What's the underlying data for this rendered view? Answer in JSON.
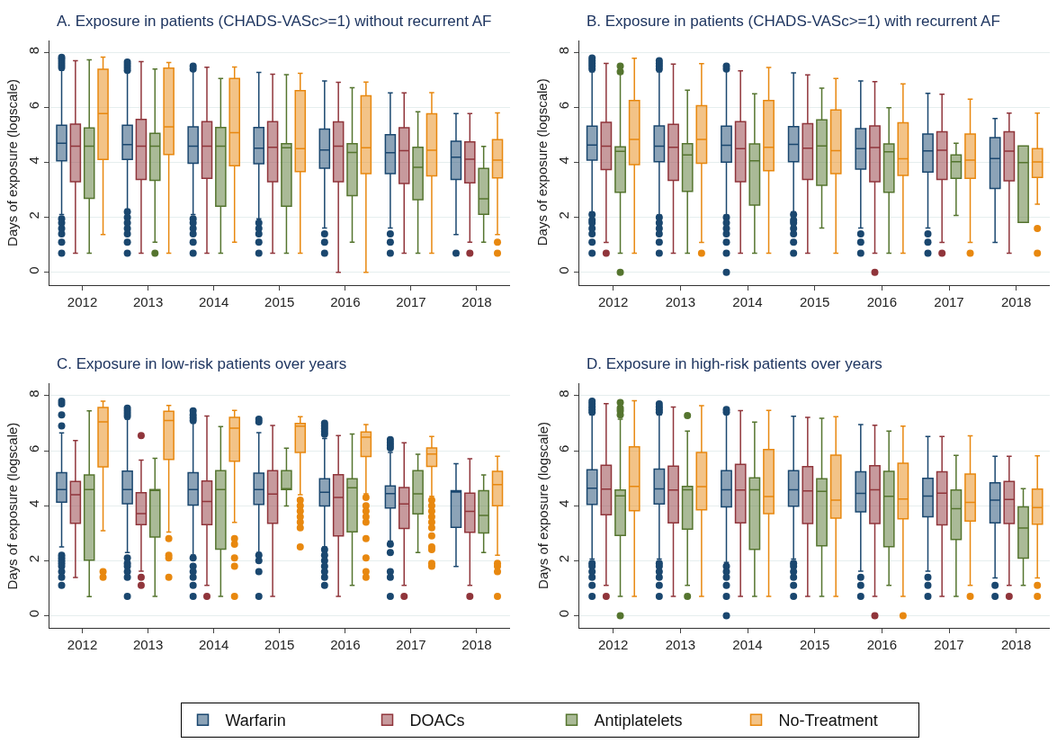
{
  "chart_data": [
    {
      "type": "box",
      "title": "A. Exposure in patients (CHADS-VASc>=1) without recurrent AF",
      "ylabel": "Days of exposure (logscale)",
      "categories": [
        "2012",
        "2013",
        "2014",
        "2015",
        "2016",
        "2017",
        "2018"
      ],
      "ylim": [
        -0.45,
        8.45
      ],
      "yticks": [
        0,
        2,
        4,
        6,
        8
      ],
      "grid": "y",
      "legend": "bottom",
      "marker": "circle",
      "series": [
        {
          "name": "Warfarin",
          "color": "#1a476f",
          "boxes": [
            {
              "low": 2.1,
              "q1": 4.06,
              "median": 4.7,
              "q3": 5.35,
              "high": 7.35,
              "outliers": [
                7.45,
                7.55,
                7.65,
                7.75,
                7.82,
                1.95,
                1.8,
                1.6,
                1.4,
                1.1,
                0.7
              ]
            },
            {
              "low": 2.3,
              "q1": 4.11,
              "median": 4.65,
              "q3": 5.35,
              "high": 7.3,
              "outliers": [
                7.35,
                7.45,
                7.55,
                7.65,
                2.2,
                2.0,
                1.8,
                1.6,
                1.4,
                1.1,
                0.7
              ]
            },
            {
              "low": 2.1,
              "q1": 3.97,
              "median": 4.59,
              "q3": 5.29,
              "high": 7.35,
              "outliers": [
                7.4,
                7.5,
                1.95,
                1.8,
                1.6,
                1.4,
                1.1,
                0.7
              ]
            },
            {
              "low": 1.95,
              "q1": 3.95,
              "median": 4.52,
              "q3": 5.27,
              "high": 7.27,
              "outliers": [
                1.8,
                1.6,
                1.4,
                1.1,
                0.7
              ]
            },
            {
              "low": 1.61,
              "q1": 3.79,
              "median": 4.45,
              "q3": 5.21,
              "high": 6.96,
              "outliers": [
                1.4,
                1.1,
                0.7
              ]
            },
            {
              "low": 1.61,
              "q1": 3.59,
              "median": 4.35,
              "q3": 5.01,
              "high": 6.53,
              "outliers": [
                1.4,
                1.1,
                0.7
              ]
            },
            {
              "low": 1.38,
              "q1": 3.38,
              "median": 4.19,
              "q3": 4.77,
              "high": 5.78,
              "outliers": [
                0.7
              ]
            }
          ]
        },
        {
          "name": "DOACs",
          "color": "#90353b",
          "boxes": [
            {
              "low": 0.7,
              "q1": 3.3,
              "median": 4.59,
              "q3": 5.39,
              "high": 7.7
            },
            {
              "low": 0.7,
              "q1": 3.38,
              "median": 4.59,
              "q3": 5.56,
              "high": 7.67
            },
            {
              "low": 0.7,
              "q1": 3.42,
              "median": 4.59,
              "q3": 5.48,
              "high": 7.46
            },
            {
              "low": 0.7,
              "q1": 3.3,
              "median": 4.55,
              "q3": 5.48,
              "high": 7.21
            },
            {
              "low": 0,
              "q1": 3.3,
              "median": 4.59,
              "q3": 5.47,
              "high": 6.91
            },
            {
              "low": 0.7,
              "q1": 3.23,
              "median": 4.43,
              "q3": 5.26,
              "high": 6.53
            },
            {
              "low": 1.1,
              "q1": 3.26,
              "median": 4.12,
              "q3": 4.75,
              "high": 5.78,
              "outliers": [
                0.7
              ]
            }
          ]
        },
        {
          "name": "Antiplatelets",
          "color": "#55752f",
          "boxes": [
            {
              "low": 0.7,
              "q1": 2.69,
              "median": 4.59,
              "q3": 5.25,
              "high": 7.73
            },
            {
              "low": 1.1,
              "q1": 3.35,
              "median": 4.59,
              "q3": 5.06,
              "high": 7.4,
              "outliers": [
                0.7
              ]
            },
            {
              "low": 0.7,
              "q1": 2.41,
              "median": 4.59,
              "q3": 5.27,
              "high": 7.05
            },
            {
              "low": 0.7,
              "q1": 2.41,
              "median": 4.53,
              "q3": 4.68,
              "high": 7.19
            },
            {
              "low": 1.1,
              "q1": 2.79,
              "median": 4.36,
              "q3": 4.68,
              "high": 6.72
            },
            {
              "low": 0.7,
              "q1": 2.64,
              "median": 3.82,
              "q3": 4.55,
              "high": 5.84
            },
            {
              "low": 1.1,
              "q1": 2.11,
              "median": 2.68,
              "q3": 3.78,
              "high": 4.58
            }
          ]
        },
        {
          "name": "No-Treatment",
          "color": "#e8880f",
          "boxes": [
            {
              "low": 1.38,
              "q1": 4.11,
              "median": 5.78,
              "q3": 7.39,
              "high": 7.83
            },
            {
              "low": 0.7,
              "q1": 4.29,
              "median": 5.29,
              "q3": 7.43,
              "high": 7.63
            },
            {
              "low": 1.1,
              "q1": 3.88,
              "median": 5.08,
              "q3": 7.05,
              "high": 7.47
            },
            {
              "low": 0.7,
              "q1": 3.67,
              "median": 4.5,
              "q3": 6.61,
              "high": 7.24
            },
            {
              "low": 0,
              "q1": 3.59,
              "median": 4.53,
              "q3": 6.42,
              "high": 6.92
            },
            {
              "low": 0.7,
              "q1": 3.51,
              "median": 4.44,
              "q3": 5.77,
              "high": 6.54
            },
            {
              "low": 1.38,
              "q1": 3.44,
              "median": 4.08,
              "q3": 4.83,
              "high": 5.8,
              "outliers": [
                1.1,
                0.7
              ]
            }
          ]
        }
      ]
    },
    {
      "type": "box",
      "title": "B. Exposure in patients (CHADS-VASc>=1) with recurrent AF",
      "ylabel": "Days of exposure (logscale)",
      "categories": [
        "2012",
        "2013",
        "2014",
        "2015",
        "2016",
        "2017",
        "2018"
      ],
      "ylim": [
        -0.45,
        8.45
      ],
      "yticks": [
        0,
        2,
        4,
        6,
        8
      ],
      "grid": "y",
      "legend": "bottom",
      "marker": "circle",
      "series": [
        {
          "name": "Warfarin",
          "color": "#1a476f",
          "boxes": [
            {
              "low": 2.19,
              "q1": 4.08,
              "median": 4.63,
              "q3": 5.32,
              "high": 7.3,
              "outliers": [
                7.4,
                7.5,
                7.6,
                7.7,
                7.8,
                2.1,
                1.9,
                1.8,
                1.6,
                1.4,
                1.1,
                0.7
              ]
            },
            {
              "low": 2.09,
              "q1": 4.03,
              "median": 4.59,
              "q3": 5.33,
              "high": 7.3,
              "outliers": [
                7.4,
                7.5,
                7.6,
                7.7,
                2.0,
                1.8,
                1.6,
                1.4,
                1.1,
                0.7
              ]
            },
            {
              "low": 2.09,
              "q1": 4.01,
              "median": 4.62,
              "q3": 5.32,
              "high": 7.35,
              "outliers": [
                7.4,
                7.5,
                2.0,
                1.8,
                1.6,
                1.4,
                1.1,
                0.7,
                0
              ]
            },
            {
              "low": 2.2,
              "q1": 4.03,
              "median": 4.66,
              "q3": 5.3,
              "high": 7.26,
              "outliers": [
                2.1,
                1.9,
                1.8,
                1.6,
                1.4,
                1.1,
                0.7
              ]
            },
            {
              "low": 1.61,
              "q1": 3.76,
              "median": 4.5,
              "q3": 5.23,
              "high": 6.96,
              "outliers": [
                1.4,
                1.1,
                0.7
              ]
            },
            {
              "low": 1.61,
              "q1": 3.65,
              "median": 4.42,
              "q3": 5.03,
              "high": 6.51,
              "outliers": [
                1.4,
                1.1,
                0.7
              ]
            },
            {
              "low": 1.09,
              "q1": 3.05,
              "median": 4.14,
              "q3": 4.9,
              "high": 5.6
            }
          ]
        },
        {
          "name": "DOACs",
          "color": "#90353b",
          "boxes": [
            {
              "low": 1.09,
              "q1": 3.74,
              "median": 4.59,
              "q3": 5.46,
              "high": 7.6,
              "outliers": [
                0.7
              ]
            },
            {
              "low": 0.7,
              "q1": 3.35,
              "median": 4.55,
              "q3": 5.38,
              "high": 7.58
            },
            {
              "low": 0.7,
              "q1": 3.3,
              "median": 4.5,
              "q3": 5.48,
              "high": 7.33
            },
            {
              "low": 0.7,
              "q1": 3.38,
              "median": 4.52,
              "q3": 5.41,
              "high": 7.18
            },
            {
              "low": 0.7,
              "q1": 3.3,
              "median": 4.54,
              "q3": 5.33,
              "high": 6.94,
              "outliers": [
                0
              ]
            },
            {
              "low": 1.09,
              "q1": 3.38,
              "median": 4.44,
              "q3": 5.11,
              "high": 6.48,
              "outliers": [
                0.7
              ]
            },
            {
              "low": 0.7,
              "q1": 3.33,
              "median": 4.41,
              "q3": 5.11,
              "high": 5.79
            }
          ]
        },
        {
          "name": "Antiplatelets",
          "color": "#55752f",
          "boxes": [
            {
              "low": 0.7,
              "q1": 2.91,
              "median": 4.4,
              "q3": 4.57,
              "high": 7.22,
              "outliers": [
                7.3,
                7.5,
                0
              ]
            },
            {
              "low": 0.7,
              "q1": 2.95,
              "median": 4.27,
              "q3": 4.68,
              "high": 6.63
            },
            {
              "low": 0.7,
              "q1": 2.45,
              "median": 4.06,
              "q3": 4.67,
              "high": 6.5
            },
            {
              "low": 1.61,
              "q1": 3.17,
              "median": 4.6,
              "q3": 5.55,
              "high": 6.7
            },
            {
              "low": 0.7,
              "q1": 2.91,
              "median": 4.39,
              "q3": 4.67,
              "high": 5.99
            },
            {
              "low": 2.07,
              "q1": 3.42,
              "median": 4.03,
              "q3": 4.27,
              "high": 4.7
            },
            {
              "low": 1.82,
              "q1": 1.82,
              "median": 3.99,
              "q3": 4.6,
              "high": 4.6
            }
          ]
        },
        {
          "name": "No-Treatment",
          "color": "#e8880f",
          "boxes": [
            {
              "low": 0.7,
              "q1": 3.92,
              "median": 4.84,
              "q3": 6.25,
              "high": 7.79
            },
            {
              "low": 1.09,
              "q1": 3.97,
              "median": 4.84,
              "q3": 6.06,
              "high": 7.59,
              "outliers": [
                0.7
              ]
            },
            {
              "low": 0.7,
              "q1": 3.7,
              "median": 4.55,
              "q3": 6.25,
              "high": 7.45
            },
            {
              "low": 0.7,
              "q1": 3.59,
              "median": 4.43,
              "q3": 5.91,
              "high": 7.05
            },
            {
              "low": 0.7,
              "q1": 3.53,
              "median": 4.13,
              "q3": 5.44,
              "high": 6.86
            },
            {
              "low": 1.09,
              "q1": 3.42,
              "median": 4.08,
              "q3": 5.03,
              "high": 6.3,
              "outliers": [
                0.7
              ]
            },
            {
              "low": 2.48,
              "q1": 3.45,
              "median": 4.02,
              "q3": 4.5,
              "high": 5.79,
              "outliers": [
                1.6,
                0.7
              ]
            }
          ]
        }
      ]
    },
    {
      "type": "box",
      "title": "C. Exposure in low-risk patients over years",
      "ylabel": "Days of exposure (logscale)",
      "categories": [
        "2012",
        "2013",
        "2014",
        "2015",
        "2016",
        "2017",
        "2018"
      ],
      "ylim": [
        -0.45,
        8.45
      ],
      "yticks": [
        0,
        2,
        4,
        6,
        8
      ],
      "grid": "y",
      "legend": "bottom",
      "marker": "circle",
      "series": [
        {
          "name": "Warfarin",
          "color": "#1a476f",
          "boxes": [
            {
              "low": 2.5,
              "q1": 4.13,
              "median": 4.59,
              "q3": 5.2,
              "high": 6.65,
              "outliers": [
                6.9,
                7.3,
                7.7,
                7.8,
                2.2,
                2.1,
                2.0,
                1.9,
                1.8,
                1.6,
                1.4,
                1.1
              ]
            },
            {
              "low": 2.3,
              "q1": 4.07,
              "median": 4.59,
              "q3": 5.26,
              "high": 7.15,
              "outliers": [
                7.25,
                7.35,
                7.45,
                7.55,
                2.1,
                1.9,
                1.8,
                1.6,
                1.4,
                0.7
              ]
            },
            {
              "low": 2.21,
              "q1": 4.02,
              "median": 4.59,
              "q3": 5.2,
              "high": 7.0,
              "outliers": [
                7.1,
                7.2,
                7.3,
                7.45,
                2.1,
                1.8,
                1.6,
                1.4,
                1.1,
                0.7
              ]
            },
            {
              "low": 2.3,
              "q1": 4.05,
              "median": 4.59,
              "q3": 5.18,
              "high": 6.66,
              "outliers": [
                7.05,
                7.15,
                2.2,
                2.0,
                1.6,
                0.7
              ]
            },
            {
              "low": 2.5,
              "q1": 3.99,
              "median": 4.49,
              "q3": 4.98,
              "high": 6.44,
              "outliers": [
                6.6,
                6.7,
                6.8,
                6.9,
                7.0,
                2.4,
                2.2,
                2.0,
                1.8,
                1.6,
                1.4,
                1.1
              ]
            },
            {
              "low": 2.71,
              "q1": 3.92,
              "median": 4.44,
              "q3": 4.72,
              "high": 5.94,
              "outliers": [
                6.1,
                6.2,
                6.3,
                6.4,
                2.6,
                2.3,
                1.6,
                1.4,
                0.7
              ]
            },
            {
              "low": 1.79,
              "q1": 3.21,
              "median": 4.5,
              "q3": 4.55,
              "high": 5.53
            }
          ]
        },
        {
          "name": "DOACs",
          "color": "#90353b",
          "boxes": [
            {
              "low": 1.39,
              "q1": 3.36,
              "median": 4.4,
              "q3": 4.88,
              "high": 6.37
            },
            {
              "low": 1.62,
              "q1": 3.31,
              "median": 3.71,
              "q3": 4.47,
              "high": 5.66,
              "outliers": [
                6.55,
                1.4,
                1.1
              ]
            },
            {
              "low": 1.1,
              "q1": 3.31,
              "median": 4.15,
              "q3": 4.9,
              "high": 7.26,
              "outliers": [
                0.7
              ]
            },
            {
              "low": 0.7,
              "q1": 3.36,
              "median": 4.42,
              "q3": 5.27,
              "high": 6.92
            },
            {
              "low": 0.7,
              "q1": 2.9,
              "median": 4.3,
              "q3": 5.13,
              "high": 6.55
            },
            {
              "low": 1.1,
              "q1": 3.17,
              "median": 4.06,
              "q3": 4.66,
              "high": 6.29,
              "outliers": [
                0.7
              ]
            },
            {
              "low": 1.1,
              "q1": 3.03,
              "median": 3.79,
              "q3": 4.46,
              "high": 5.71,
              "outliers": [
                0.7
              ]
            }
          ]
        },
        {
          "name": "Antiplatelets",
          "color": "#55752f",
          "boxes": [
            {
              "low": 0.69,
              "q1": 2.02,
              "median": 4.59,
              "q3": 5.12,
              "high": 7.45
            },
            {
              "low": 0.7,
              "q1": 2.86,
              "median": 4.59,
              "q3": 4.59,
              "high": 5.72
            },
            {
              "low": 0.7,
              "q1": 2.42,
              "median": 4.59,
              "q3": 5.27,
              "high": 6.88
            },
            {
              "low": 3.99,
              "q1": 4.59,
              "median": 4.59,
              "q3": 5.27,
              "high": 6.09
            },
            {
              "low": 1.1,
              "q1": 3.05,
              "median": 4.65,
              "q3": 4.98,
              "high": 6.61
            },
            {
              "low": 2.3,
              "q1": 3.7,
              "median": 4.43,
              "q3": 5.27,
              "high": 5.87
            },
            {
              "low": 2.3,
              "q1": 3.01,
              "median": 3.65,
              "q3": 4.55,
              "high": 5.12
            }
          ]
        },
        {
          "name": "No-Treatment",
          "color": "#e8880f",
          "boxes": [
            {
              "low": 3.09,
              "q1": 5.41,
              "median": 7.05,
              "q3": 7.57,
              "high": 7.8,
              "outliers": [
                1.6,
                1.4
              ]
            },
            {
              "low": 3.04,
              "q1": 5.68,
              "median": 7.1,
              "q3": 7.43,
              "high": 7.65,
              "outliers": [
                2.8,
                2.2,
                2.1,
                1.4
              ]
            },
            {
              "low": 3.39,
              "q1": 5.62,
              "median": 6.82,
              "q3": 7.21,
              "high": 7.47,
              "outliers": [
                2.8,
                2.6,
                2.1,
                1.8,
                0.7
              ]
            },
            {
              "low": 4.4,
              "q1": 5.94,
              "median": 6.89,
              "q3": 6.99,
              "high": 7.24,
              "outliers": [
                4.2,
                4.0,
                3.8,
                3.6,
                3.4,
                3.2,
                2.5
              ]
            },
            {
              "low": 4.43,
              "q1": 5.79,
              "median": 6.49,
              "q3": 6.68,
              "high": 6.95,
              "outliers": [
                4.3,
                4.0,
                3.8,
                3.6,
                3.4,
                2.8,
                2.1,
                1.6,
                1.4
              ]
            },
            {
              "low": 4.34,
              "q1": 5.43,
              "median": 5.88,
              "q3": 6.1,
              "high": 6.52,
              "outliers": [
                4.2,
                4.0,
                3.8,
                3.6,
                3.4,
                3.2,
                2.9,
                2.5,
                2.4,
                1.9,
                1.8
              ]
            },
            {
              "low": 2.2,
              "q1": 4.0,
              "median": 4.77,
              "q3": 5.25,
              "high": 5.8,
              "outliers": [
                1.9,
                1.8,
                1.6,
                0.7
              ]
            }
          ]
        }
      ]
    },
    {
      "type": "box",
      "title": "D. Exposure in high-risk patients over years",
      "ylabel": "Days of exposure (logscale)",
      "categories": [
        "2012",
        "2013",
        "2014",
        "2015",
        "2016",
        "2017",
        "2018"
      ],
      "ylim": [
        -0.45,
        8.45
      ],
      "yticks": [
        0,
        2,
        4,
        6,
        8
      ],
      "grid": "y",
      "legend": "bottom",
      "marker": "circle",
      "series": [
        {
          "name": "Warfarin",
          "color": "#1a476f",
          "boxes": [
            {
              "low": 2.06,
              "q1": 4.05,
              "median": 4.64,
              "q3": 5.31,
              "high": 7.3,
              "outliers": [
                7.4,
                7.5,
                7.6,
                7.7,
                7.8,
                1.9,
                1.8,
                1.6,
                1.4,
                1.1,
                0.7
              ]
            },
            {
              "low": 2.06,
              "q1": 4.06,
              "median": 4.61,
              "q3": 5.33,
              "high": 7.3,
              "outliers": [
                7.4,
                7.5,
                7.6,
                7.7,
                1.9,
                1.8,
                1.6,
                1.4,
                1.1,
                0.7
              ]
            },
            {
              "low": 1.94,
              "q1": 3.96,
              "median": 4.58,
              "q3": 5.27,
              "high": 7.35,
              "outliers": [
                7.4,
                7.5,
                1.8,
                1.6,
                1.4,
                1.1,
                0.7,
                0
              ]
            },
            {
              "low": 2.06,
              "q1": 3.98,
              "median": 4.58,
              "q3": 5.27,
              "high": 7.25,
              "outliers": [
                1.9,
                1.8,
                1.6,
                1.4,
                1.1,
                0.7
              ]
            },
            {
              "low": 1.62,
              "q1": 3.78,
              "median": 4.45,
              "q3": 5.23,
              "high": 6.95,
              "outliers": [
                1.4,
                1.1,
                0.7
              ]
            },
            {
              "low": 1.62,
              "q1": 3.6,
              "median": 4.35,
              "q3": 5.0,
              "high": 6.52,
              "outliers": [
                1.4,
                1.1,
                0.7
              ]
            },
            {
              "low": 1.37,
              "q1": 3.38,
              "median": 4.2,
              "q3": 4.83,
              "high": 5.8,
              "outliers": [
                1.1,
                0.7
              ]
            }
          ]
        },
        {
          "name": "DOACs",
          "color": "#90353b",
          "boxes": [
            {
              "low": 1.1,
              "q1": 3.67,
              "median": 4.6,
              "q3": 5.47,
              "high": 7.71,
              "outliers": [
                0.7
              ]
            },
            {
              "low": 0.7,
              "q1": 3.38,
              "median": 4.57,
              "q3": 5.44,
              "high": 7.59
            },
            {
              "low": 0.7,
              "q1": 3.38,
              "median": 4.57,
              "q3": 5.5,
              "high": 7.46
            },
            {
              "low": 0.7,
              "q1": 3.35,
              "median": 4.54,
              "q3": 5.42,
              "high": 7.21
            },
            {
              "low": 0.7,
              "q1": 3.35,
              "median": 4.58,
              "q3": 5.45,
              "high": 6.93,
              "outliers": [
                0
              ]
            },
            {
              "low": 0.7,
              "q1": 3.3,
              "median": 4.46,
              "q3": 5.23,
              "high": 6.52
            },
            {
              "low": 1.1,
              "q1": 3.35,
              "median": 4.23,
              "q3": 4.88,
              "high": 5.8,
              "outliers": [
                0.7
              ]
            }
          ]
        },
        {
          "name": "Antiplatelets",
          "color": "#55752f",
          "boxes": [
            {
              "low": 0.7,
              "q1": 2.92,
              "median": 4.36,
              "q3": 4.57,
              "high": 7.15,
              "outliers": [
                7.3,
                7.45,
                7.55,
                7.75,
                0
              ]
            },
            {
              "low": 1.1,
              "q1": 3.15,
              "median": 4.58,
              "q3": 4.7,
              "high": 6.71,
              "outliers": [
                7.28,
                0.7
              ]
            },
            {
              "low": 0.7,
              "q1": 2.41,
              "median": 4.58,
              "q3": 5.01,
              "high": 7.04
            },
            {
              "low": 0.7,
              "q1": 2.54,
              "median": 4.52,
              "q3": 4.98,
              "high": 7.18
            },
            {
              "low": 1.1,
              "q1": 2.51,
              "median": 4.34,
              "q3": 5.25,
              "high": 6.71
            },
            {
              "low": 0.7,
              "q1": 2.77,
              "median": 3.89,
              "q3": 4.57,
              "high": 5.83
            },
            {
              "low": 1.1,
              "q1": 2.09,
              "median": 3.19,
              "q3": 3.96,
              "high": 4.62
            }
          ]
        },
        {
          "name": "No-Treatment",
          "color": "#e8880f",
          "boxes": [
            {
              "low": 0.7,
              "q1": 3.82,
              "median": 4.7,
              "q3": 6.14,
              "high": 7.82
            },
            {
              "low": 0.7,
              "q1": 3.85,
              "median": 4.69,
              "q3": 5.94,
              "high": 7.64
            },
            {
              "low": 0.7,
              "q1": 3.71,
              "median": 4.33,
              "q3": 6.04,
              "high": 7.47
            },
            {
              "low": 0.7,
              "q1": 3.55,
              "median": 4.2,
              "q3": 5.84,
              "high": 7.24
            },
            {
              "low": 0.7,
              "q1": 3.52,
              "median": 4.24,
              "q3": 5.54,
              "high": 6.89,
              "outliers": [
                0
              ]
            },
            {
              "low": 1.1,
              "q1": 3.44,
              "median": 4.12,
              "q3": 5.15,
              "high": 6.54,
              "outliers": [
                0.7
              ]
            },
            {
              "low": 1.37,
              "q1": 3.33,
              "median": 3.93,
              "q3": 4.6,
              "high": 5.81,
              "outliers": [
                1.1,
                0.7
              ]
            }
          ]
        }
      ]
    }
  ]
}
